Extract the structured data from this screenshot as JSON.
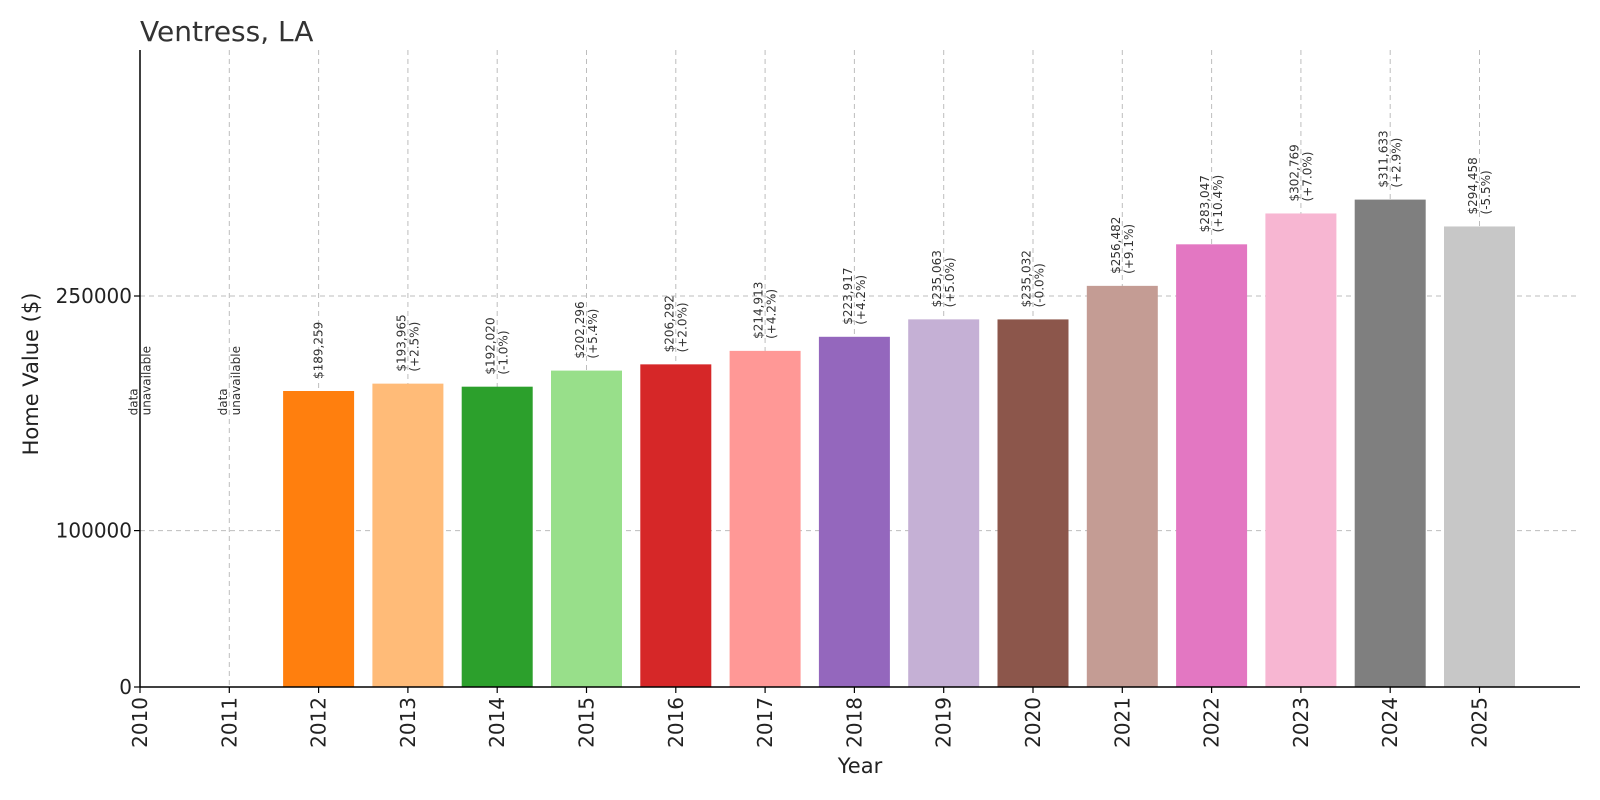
{
  "chart_data": {
    "type": "bar",
    "title": "Ventress, LA",
    "xlabel": "Year",
    "ylabel": "Home Value ($)",
    "categories": [
      "2010",
      "2011",
      "2012",
      "2013",
      "2014",
      "2015",
      "2016",
      "2017",
      "2018",
      "2019",
      "2020",
      "2021",
      "2022",
      "2023",
      "2024",
      "2025"
    ],
    "values": [
      null,
      null,
      189259,
      193965,
      192020,
      202296,
      206292,
      214913,
      223917,
      235063,
      235032,
      256482,
      283047,
      302769,
      311633,
      294458
    ],
    "labels": [
      [
        "data",
        "unavailable"
      ],
      [
        "data",
        "unavailable"
      ],
      [
        "$189,259"
      ],
      [
        "$193,965",
        "(+2.5%)"
      ],
      [
        "$192,020",
        "(-1.0%)"
      ],
      [
        "$202,296",
        "(+5.4%)"
      ],
      [
        "$206,292",
        "(+2.0%)"
      ],
      [
        "$214,913",
        "(+4.2%)"
      ],
      [
        "$223,917",
        "(+4.2%)"
      ],
      [
        "$235,063",
        "(+5.0%)"
      ],
      [
        "$235,032",
        "(-0.0%)"
      ],
      [
        "$256,482",
        "(+9.1%)"
      ],
      [
        "$283,047",
        "(+10.4%)"
      ],
      [
        "$302,769",
        "(+7.0%)"
      ],
      [
        "$311,633",
        "(+2.9%)"
      ],
      [
        "$294,458",
        "(-5.5%)"
      ]
    ],
    "colors": [
      "#1f77b4",
      "#aec7e8",
      "#ff7f0e",
      "#ffbb78",
      "#2ca02c",
      "#98df8a",
      "#d62728",
      "#ff9896",
      "#9467bd",
      "#c5b0d5",
      "#8c564b",
      "#c49c94",
      "#e377c2",
      "#f7b6d2",
      "#7f7f7f",
      "#c7c7c7"
    ],
    "yticks": [
      0,
      100000,
      250000
    ],
    "ylim": [
      0,
      400000
    ],
    "grid": true
  }
}
